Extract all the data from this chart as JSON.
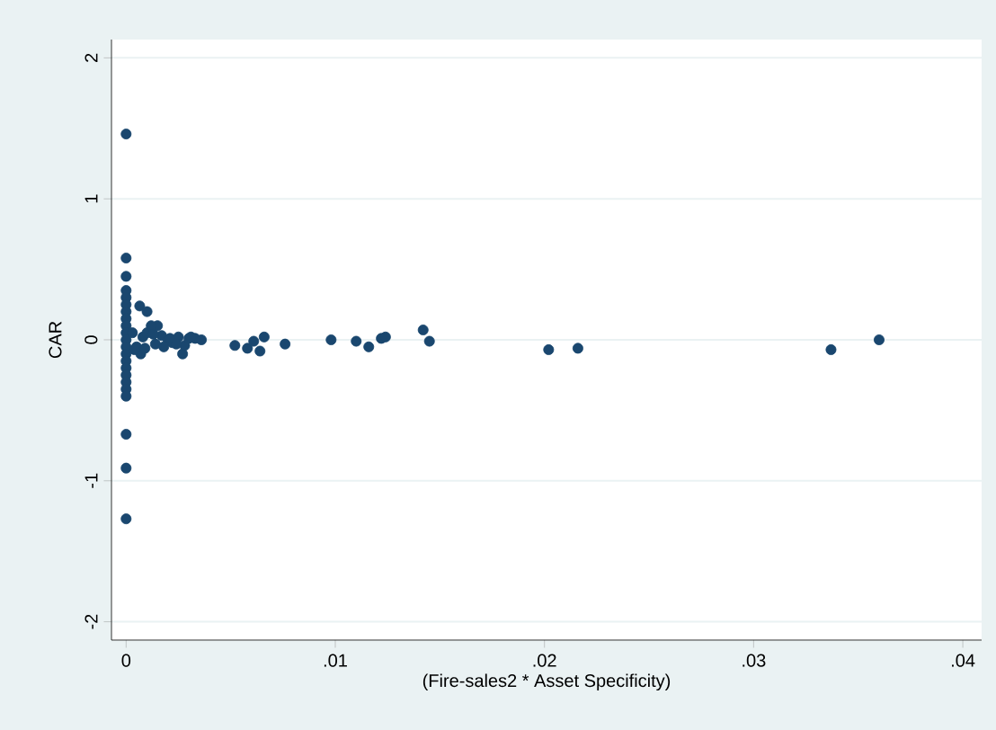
{
  "chart_data": {
    "type": "scatter",
    "xlabel": "(Fire-sales2 * Asset Specificity)",
    "ylabel": "CAR",
    "xlim": [
      -0.0007,
      0.0409
    ],
    "ylim": [
      -2.13,
      2.13
    ],
    "xticks": [
      {
        "value": 0,
        "label": "0"
      },
      {
        "value": 0.01,
        "label": ".01"
      },
      {
        "value": 0.02,
        "label": ".02"
      },
      {
        "value": 0.03,
        "label": ".03"
      },
      {
        "value": 0.04,
        "label": ".04"
      }
    ],
    "yticks": [
      -2,
      -1,
      0,
      1,
      2
    ],
    "grid": "y",
    "marker": "circle",
    "series": [
      {
        "color": "#1a476f",
        "x": [
          0,
          0,
          0,
          0,
          0,
          0,
          0,
          0,
          0,
          0,
          0,
          0,
          0,
          0,
          0,
          0,
          0,
          0,
          0,
          0,
          0,
          0,
          0.00065,
          0.001,
          0.0015,
          0.0027,
          0.0007,
          0.0003,
          0.0005,
          0.0008,
          0.001,
          0.0012,
          0.0014,
          0.0017,
          0.002,
          0.0022,
          0.0025,
          0.0028,
          0.003,
          0.0033,
          0.0036,
          0.0004,
          0.0009,
          0.0013,
          0.0018,
          0.0021,
          0.0024,
          0.0031,
          0.0052,
          0.0058,
          0.0061,
          0.0064,
          0.0066,
          0.0076,
          0.0098,
          0.011,
          0.0116,
          0.0122,
          0.0124,
          0.0142,
          0.0145,
          0.0202,
          0.0216,
          0.0337,
          0.036
        ],
        "values": [
          1.46,
          0.58,
          0.45,
          0.35,
          0.3,
          0.25,
          0.2,
          0.15,
          0.1,
          0.05,
          0,
          -0.05,
          -0.1,
          -0.15,
          -0.2,
          -0.25,
          -0.3,
          -0.35,
          -0.4,
          -0.67,
          -0.91,
          -1.27,
          0.24,
          0.2,
          0.1,
          -0.1,
          -0.1,
          0.05,
          -0.05,
          0.02,
          0.05,
          0.1,
          -0.03,
          0.03,
          0,
          -0.02,
          0.02,
          -0.04,
          0.01,
          0.01,
          0,
          -0.07,
          -0.06,
          0.04,
          -0.05,
          0.01,
          -0.03,
          0.02,
          -0.04,
          -0.06,
          -0.01,
          -0.08,
          0.02,
          -0.03,
          0,
          -0.01,
          -0.05,
          0.01,
          0.02,
          0.07,
          -0.01,
          -0.07,
          -0.06,
          -0.07,
          0
        ]
      }
    ]
  }
}
